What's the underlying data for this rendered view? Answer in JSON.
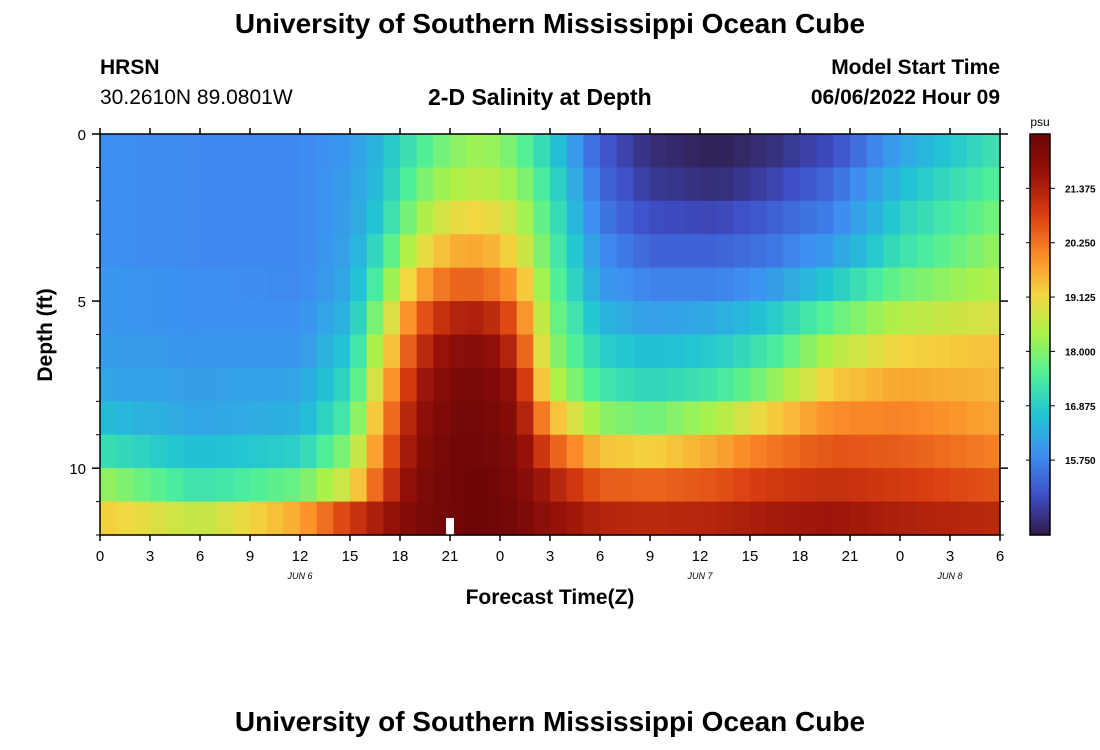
{
  "header": {
    "title": "University of Southern Mississippi Ocean Cube",
    "station": "HRSN",
    "coords": "30.2610N  89.0801W",
    "chart_title": "2-D Salinity at Depth",
    "start_label": "Model Start Time",
    "start_value": "06/06/2022 Hour 09"
  },
  "footer": {
    "title": "University of Southern Mississippi Ocean Cube"
  },
  "colors": {
    "colormap": [
      "#301b48",
      "#3f4fc8",
      "#3e8ef2",
      "#22c4d4",
      "#4ef09a",
      "#aaf24a",
      "#f4d640",
      "#fb8a28",
      "#d83d10",
      "#98120a",
      "#6c0606"
    ]
  },
  "chart_data": {
    "type": "heatmap",
    "title": "2-D Salinity at Depth",
    "xlabel": "Forecast Time(Z)",
    "ylabel": "Depth (ft)",
    "x_tick_labels": [
      "0",
      "3",
      "6",
      "9",
      "12",
      "15",
      "18",
      "21",
      "0",
      "3",
      "6",
      "9",
      "12",
      "15",
      "18",
      "21",
      "0",
      "3",
      "6"
    ],
    "date_labels": [
      {
        "label": "JUN 6",
        "tick_index": 4
      },
      {
        "label": "JUN 7",
        "tick_index": 12
      },
      {
        "label": "JUN 8",
        "tick_index": 17
      }
    ],
    "y_ticks": [
      0,
      5,
      10
    ],
    "ylim": [
      0,
      12
    ],
    "x_hours": [
      0,
      54
    ],
    "current_time_hour": 21,
    "colorbar": {
      "unit": "psu",
      "range": [
        14.2,
        22.5
      ],
      "ticks": [
        "21.375",
        "20.250",
        "19.125",
        "18.000",
        "16.875",
        "15.750"
      ],
      "tick_values": [
        21.375,
        20.25,
        19.125,
        18.0,
        16.875,
        15.75
      ]
    },
    "rows": 12,
    "columns": 54,
    "values_note": "salinity in psu; each row is a 1-ft depth band (0-1 ft ... 11-12 ft), each column one forecast hour",
    "control_hours": [
      0,
      6,
      12,
      15,
      17,
      19,
      21,
      23,
      25,
      27,
      30,
      33,
      37,
      40,
      44,
      48,
      54
    ],
    "control_values": [
      [
        15.9,
        15.8,
        15.8,
        16.0,
        16.6,
        17.4,
        18.0,
        18.3,
        17.8,
        16.9,
        15.2,
        14.5,
        14.3,
        14.5,
        15.0,
        16.2,
        17.3
      ],
      [
        15.9,
        15.8,
        15.8,
        16.1,
        16.7,
        17.8,
        18.4,
        18.6,
        18.2,
        17.2,
        15.4,
        14.7,
        14.5,
        14.8,
        15.4,
        16.6,
        17.6
      ],
      [
        15.9,
        15.8,
        15.8,
        16.1,
        16.9,
        18.2,
        19.0,
        19.2,
        18.6,
        17.4,
        15.6,
        15.0,
        14.9,
        15.2,
        15.7,
        16.9,
        17.9
      ],
      [
        15.9,
        15.8,
        15.8,
        16.2,
        17.3,
        18.8,
        19.6,
        19.7,
        19.1,
        17.6,
        15.9,
        15.3,
        15.3,
        15.5,
        16.1,
        17.2,
        18.2
      ],
      [
        16.0,
        15.9,
        15.8,
        16.3,
        17.8,
        19.6,
        20.4,
        20.4,
        19.8,
        17.8,
        16.1,
        15.7,
        15.7,
        16.0,
        16.8,
        17.8,
        18.5
      ],
      [
        16.0,
        15.9,
        15.9,
        16.5,
        18.4,
        20.4,
        21.3,
        21.4,
        20.5,
        18.0,
        16.5,
        16.1,
        16.3,
        16.7,
        17.7,
        18.5,
        18.9
      ],
      [
        16.1,
        16.0,
        16.0,
        16.8,
        18.9,
        21.0,
        21.9,
        22.0,
        21.1,
        18.2,
        16.9,
        16.6,
        16.8,
        17.3,
        18.5,
        19.2,
        19.4
      ],
      [
        16.2,
        16.1,
        16.2,
        17.1,
        19.4,
        21.4,
        22.2,
        22.3,
        21.6,
        18.6,
        17.3,
        17.0,
        17.3,
        18.0,
        19.3,
        19.7,
        19.5
      ],
      [
        16.6,
        16.2,
        16.4,
        17.5,
        19.9,
        21.7,
        22.3,
        22.4,
        21.9,
        19.6,
        18.1,
        17.8,
        18.4,
        19.2,
        20.0,
        20.1,
        19.7
      ],
      [
        17.2,
        16.6,
        16.9,
        18.1,
        20.3,
        21.9,
        22.4,
        22.4,
        22.1,
        20.6,
        19.4,
        19.2,
        19.7,
        20.2,
        20.6,
        20.5,
        20.1
      ],
      [
        18.2,
        17.2,
        17.8,
        18.9,
        20.8,
        22.1,
        22.4,
        22.5,
        22.2,
        21.4,
        20.5,
        20.4,
        20.6,
        20.9,
        21.1,
        20.9,
        20.6
      ],
      [
        19.3,
        18.6,
        19.7,
        20.9,
        21.6,
        22.2,
        22.4,
        22.5,
        22.3,
        21.8,
        21.3,
        21.2,
        21.3,
        21.5,
        21.6,
        21.4,
        21.2
      ]
    ]
  }
}
